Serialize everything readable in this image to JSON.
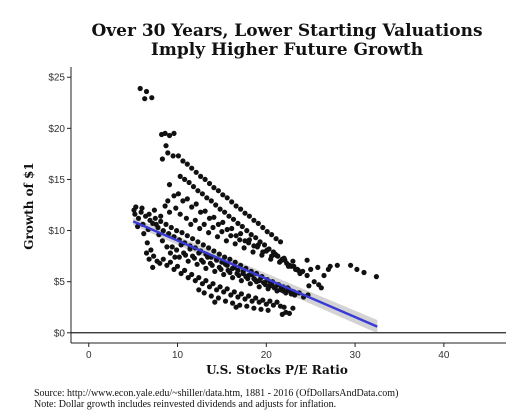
{
  "footnotes": {
    "source": "Source:  http://www.econ.yale.edu/~shiller/data.htm, 1881 - 2016 (OfDollarsAndData.com)",
    "note": "Note:  Dollar growth includes reinvested dividends and adjusts for inflation."
  },
  "chart_data": {
    "type": "scatter",
    "title": [
      "Over 30 Years, Lower Starting Valuations",
      "Imply Higher Future Growth"
    ],
    "xlabel": "U.S. Stocks P/E Ratio",
    "ylabel": "Growth of $1",
    "xlim": [
      -2,
      47
    ],
    "ylim": [
      -1,
      26
    ],
    "xticks": [
      0,
      10,
      20,
      30,
      40
    ],
    "yticks": [
      0,
      5,
      10,
      15,
      20,
      25
    ],
    "ytick_labels": [
      "$0",
      "$5",
      "$10",
      "$15",
      "$20",
      "$25"
    ],
    "grid": false,
    "legend": "none",
    "hline": 0,
    "colors": {
      "points": "#111111",
      "trend": "#3a3ad6",
      "band": "#c8c8c8",
      "axis": "#222222"
    },
    "trend": {
      "x": [
        5,
        32.5
      ],
      "y": [
        10.9,
        0.6
      ],
      "band_halfwidth": [
        0.38,
        0.65
      ]
    },
    "points": [
      [
        5.8,
        23.9
      ],
      [
        6.5,
        23.6
      ],
      [
        7.1,
        23.0
      ],
      [
        6.3,
        22.9
      ],
      [
        8.2,
        19.4
      ],
      [
        8.6,
        19.5
      ],
      [
        9.1,
        19.3
      ],
      [
        9.6,
        19.5
      ],
      [
        8.7,
        18.3
      ],
      [
        8.9,
        17.6
      ],
      [
        9.5,
        17.3
      ],
      [
        8.3,
        17.0
      ],
      [
        10.1,
        17.3
      ],
      [
        10.6,
        16.8
      ],
      [
        11.1,
        16.5
      ],
      [
        11.6,
        16.1
      ],
      [
        12.1,
        15.7
      ],
      [
        12.6,
        15.3
      ],
      [
        13.1,
        15.0
      ],
      [
        13.6,
        14.6
      ],
      [
        14.1,
        14.2
      ],
      [
        14.6,
        13.9
      ],
      [
        15.1,
        13.5
      ],
      [
        15.6,
        13.2
      ],
      [
        16.1,
        12.8
      ],
      [
        16.6,
        12.4
      ],
      [
        17.1,
        12.1
      ],
      [
        17.6,
        11.7
      ],
      [
        18.1,
        11.4
      ],
      [
        18.6,
        11.0
      ],
      [
        19.1,
        10.7
      ],
      [
        19.6,
        10.3
      ],
      [
        20.1,
        9.9
      ],
      [
        20.6,
        9.6
      ],
      [
        21.1,
        9.2
      ],
      [
        21.6,
        8.9
      ],
      [
        10.3,
        15.3
      ],
      [
        10.8,
        15.0
      ],
      [
        11.3,
        14.7
      ],
      [
        11.8,
        14.3
      ],
      [
        12.3,
        13.9
      ],
      [
        12.8,
        13.6
      ],
      [
        13.3,
        13.2
      ],
      [
        13.8,
        12.9
      ],
      [
        14.3,
        12.5
      ],
      [
        14.8,
        12.1
      ],
      [
        15.3,
        11.8
      ],
      [
        15.8,
        11.4
      ],
      [
        16.3,
        11.1
      ],
      [
        16.8,
        10.7
      ],
      [
        17.3,
        10.4
      ],
      [
        17.8,
        10.0
      ],
      [
        18.3,
        9.6
      ],
      [
        18.8,
        9.3
      ],
      [
        19.3,
        8.9
      ],
      [
        19.8,
        8.6
      ],
      [
        20.3,
        8.2
      ],
      [
        20.8,
        7.9
      ],
      [
        21.3,
        7.5
      ],
      [
        21.8,
        7.2
      ],
      [
        22.3,
        6.8
      ],
      [
        22.8,
        6.5
      ],
      [
        23.3,
        6.2
      ],
      [
        23.8,
        5.8
      ],
      [
        9.1,
        14.5
      ],
      [
        9.6,
        13.4
      ],
      [
        10.1,
        13.6
      ],
      [
        10.6,
        12.9
      ],
      [
        11.1,
        13.1
      ],
      [
        11.6,
        12.3
      ],
      [
        12.1,
        12.6
      ],
      [
        12.6,
        11.8
      ],
      [
        13.1,
        11.9
      ],
      [
        13.6,
        11.2
      ],
      [
        14.1,
        11.3
      ],
      [
        14.6,
        10.6
      ],
      [
        15.1,
        10.8
      ],
      [
        15.6,
        10.1
      ],
      [
        16.1,
        10.2
      ],
      [
        16.6,
        9.5
      ],
      [
        17.1,
        9.7
      ],
      [
        17.6,
        9.0
      ],
      [
        18.1,
        9.1
      ],
      [
        18.6,
        8.5
      ],
      [
        19.1,
        8.6
      ],
      [
        19.6,
        7.9
      ],
      [
        20.1,
        8.1
      ],
      [
        20.6,
        7.5
      ],
      [
        21.1,
        7.6
      ],
      [
        21.6,
        7.0
      ],
      [
        22.1,
        7.1
      ],
      [
        22.6,
        6.6
      ],
      [
        23.1,
        6.5
      ],
      [
        23.6,
        6.1
      ],
      [
        24.1,
        6.0
      ],
      [
        24.6,
        5.6
      ],
      [
        5.2,
        11.6
      ],
      [
        5.6,
        11.2
      ],
      [
        5.9,
        11.8
      ],
      [
        6.1,
        10.6
      ],
      [
        6.4,
        11.4
      ],
      [
        6.7,
        10.1
      ],
      [
        6.9,
        11.0
      ],
      [
        7.2,
        10.7
      ],
      [
        7.5,
        11.2
      ],
      [
        7.8,
        10.3
      ],
      [
        8.1,
        10.9
      ],
      [
        8.4,
        10.0
      ],
      [
        8.7,
        10.6
      ],
      [
        9.0,
        9.7
      ],
      [
        9.3,
        10.3
      ],
      [
        9.6,
        9.4
      ],
      [
        9.9,
        10.0
      ],
      [
        10.2,
        9.1
      ],
      [
        10.5,
        9.8
      ],
      [
        10.8,
        8.8
      ],
      [
        11.1,
        9.5
      ],
      [
        11.4,
        8.5
      ],
      [
        11.7,
        9.2
      ],
      [
        12.0,
        8.3
      ],
      [
        12.3,
        8.9
      ],
      [
        12.6,
        8.0
      ],
      [
        12.9,
        8.6
      ],
      [
        13.2,
        7.7
      ],
      [
        13.5,
        8.3
      ],
      [
        13.8,
        7.4
      ],
      [
        14.1,
        8.0
      ],
      [
        14.4,
        7.2
      ],
      [
        14.7,
        7.7
      ],
      [
        15.0,
        6.9
      ],
      [
        15.3,
        7.4
      ],
      [
        15.6,
        6.6
      ],
      [
        15.9,
        7.2
      ],
      [
        16.2,
        6.3
      ],
      [
        16.5,
        6.9
      ],
      [
        16.8,
        6.1
      ],
      [
        17.1,
        6.6
      ],
      [
        17.4,
        5.8
      ],
      [
        17.7,
        6.3
      ],
      [
        18.0,
        5.6
      ],
      [
        18.3,
        6.0
      ],
      [
        18.6,
        5.3
      ],
      [
        18.9,
        5.8
      ],
      [
        19.2,
        5.1
      ],
      [
        19.5,
        5.5
      ],
      [
        19.8,
        4.9
      ],
      [
        20.1,
        5.2
      ],
      [
        20.4,
        4.6
      ],
      [
        20.7,
        5.0
      ],
      [
        21.0,
        4.4
      ],
      [
        21.3,
        4.7
      ],
      [
        21.6,
        4.2
      ],
      [
        21.9,
        4.5
      ],
      [
        22.2,
        4.0
      ],
      [
        22.5,
        4.3
      ],
      [
        22.8,
        3.8
      ],
      [
        23.1,
        4.0
      ],
      [
        5.3,
        12.3
      ],
      [
        5.1,
        12.0
      ],
      [
        6.0,
        12.2
      ],
      [
        6.8,
        11.6
      ],
      [
        7.4,
        12.0
      ],
      [
        5.5,
        10.4
      ],
      [
        6.2,
        9.7
      ],
      [
        6.6,
        8.8
      ],
      [
        7.0,
        8.1
      ],
      [
        7.3,
        7.5
      ],
      [
        7.7,
        7.0
      ],
      [
        8.0,
        6.8
      ],
      [
        7.2,
        6.4
      ],
      [
        6.8,
        7.2
      ],
      [
        6.5,
        7.8
      ],
      [
        8.4,
        7.2
      ],
      [
        8.8,
        6.6
      ],
      [
        9.2,
        6.9
      ],
      [
        9.6,
        6.2
      ],
      [
        10.0,
        6.5
      ],
      [
        10.4,
        5.8
      ],
      [
        10.8,
        6.1
      ],
      [
        11.2,
        5.4
      ],
      [
        11.6,
        5.7
      ],
      [
        12.0,
        5.1
      ],
      [
        12.4,
        5.4
      ],
      [
        12.8,
        4.8
      ],
      [
        13.2,
        5.1
      ],
      [
        13.6,
        4.5
      ],
      [
        14.0,
        4.8
      ],
      [
        14.4,
        4.2
      ],
      [
        14.8,
        4.5
      ],
      [
        15.2,
        4.0
      ],
      [
        15.6,
        4.3
      ],
      [
        16.0,
        3.7
      ],
      [
        16.4,
        4.0
      ],
      [
        16.8,
        3.5
      ],
      [
        17.2,
        3.8
      ],
      [
        17.6,
        3.3
      ],
      [
        18.0,
        3.6
      ],
      [
        18.4,
        3.1
      ],
      [
        18.8,
        3.4
      ],
      [
        19.2,
        3.0
      ],
      [
        19.6,
        3.2
      ],
      [
        20.0,
        2.8
      ],
      [
        20.4,
        3.1
      ],
      [
        20.8,
        2.7
      ],
      [
        21.2,
        3.0
      ],
      [
        21.6,
        2.6
      ],
      [
        22.0,
        2.5
      ],
      [
        22.2,
        2.0
      ],
      [
        22.6,
        1.9
      ],
      [
        23.0,
        2.4
      ],
      [
        21.8,
        1.8
      ],
      [
        10.2,
        7.4
      ],
      [
        10.7,
        7.8
      ],
      [
        11.2,
        7.0
      ],
      [
        11.7,
        7.5
      ],
      [
        12.2,
        6.7
      ],
      [
        12.7,
        7.1
      ],
      [
        13.2,
        6.3
      ],
      [
        13.7,
        6.8
      ],
      [
        14.2,
        6.0
      ],
      [
        14.7,
        6.4
      ],
      [
        15.2,
        5.7
      ],
      [
        15.7,
        6.1
      ],
      [
        16.2,
        5.4
      ],
      [
        16.7,
        5.8
      ],
      [
        17.2,
        5.1
      ],
      [
        17.7,
        5.5
      ],
      [
        18.2,
        4.8
      ],
      [
        18.7,
        5.2
      ],
      [
        19.2,
        4.5
      ],
      [
        19.7,
        4.9
      ],
      [
        20.2,
        4.3
      ],
      [
        20.7,
        4.6
      ],
      [
        21.2,
        4.1
      ],
      [
        21.7,
        4.4
      ],
      [
        22.2,
        3.9
      ],
      [
        22.7,
        4.1
      ],
      [
        23.2,
        3.7
      ],
      [
        23.7,
        3.9
      ],
      [
        24.2,
        3.5
      ],
      [
        24.7,
        3.7
      ],
      [
        9.4,
        8.4
      ],
      [
        9.9,
        8.1
      ],
      [
        10.4,
        8.6
      ],
      [
        10.9,
        7.6
      ],
      [
        11.4,
        8.2
      ],
      [
        11.9,
        7.3
      ],
      [
        12.4,
        7.8
      ],
      [
        12.9,
        6.9
      ],
      [
        13.4,
        7.4
      ],
      [
        13.9,
        6.6
      ],
      [
        14.4,
        7.1
      ],
      [
        14.9,
        6.2
      ],
      [
        15.4,
        6.7
      ],
      [
        15.9,
        5.9
      ],
      [
        16.4,
        6.4
      ],
      [
        16.9,
        5.6
      ],
      [
        17.4,
        6.0
      ],
      [
        17.9,
        5.3
      ],
      [
        18.4,
        5.7
      ],
      [
        18.9,
        5.0
      ],
      [
        19.4,
        5.4
      ],
      [
        19.9,
        4.7
      ],
      [
        20.4,
        5.0
      ],
      [
        20.9,
        4.4
      ],
      [
        21.4,
        4.7
      ],
      [
        21.9,
        4.1
      ],
      [
        22.4,
        4.4
      ],
      [
        22.9,
        3.8
      ],
      [
        11.0,
        11.2
      ],
      [
        11.5,
        10.6
      ],
      [
        12.0,
        11.0
      ],
      [
        12.5,
        10.2
      ],
      [
        13.0,
        10.6
      ],
      [
        13.5,
        9.8
      ],
      [
        14.0,
        10.3
      ],
      [
        14.5,
        9.4
      ],
      [
        15.0,
        9.9
      ],
      [
        15.5,
        9.0
      ],
      [
        16.0,
        9.5
      ],
      [
        16.5,
        8.7
      ],
      [
        17.0,
        9.1
      ],
      [
        17.5,
        8.3
      ],
      [
        18.0,
        8.8
      ],
      [
        18.5,
        7.9
      ],
      [
        19.0,
        8.4
      ],
      [
        19.5,
        7.6
      ],
      [
        20.0,
        8.0
      ],
      [
        20.5,
        7.2
      ],
      [
        21.0,
        7.7
      ],
      [
        21.5,
        6.9
      ],
      [
        22.0,
        7.3
      ],
      [
        22.5,
        6.5
      ],
      [
        23.0,
        7.0
      ],
      [
        23.5,
        6.2
      ],
      [
        8.6,
        12.4
      ],
      [
        9.1,
        11.8
      ],
      [
        8.9,
        12.9
      ],
      [
        9.8,
        12.2
      ],
      [
        10.3,
        11.6
      ],
      [
        8.1,
        11.4
      ],
      [
        7.6,
        10.6
      ],
      [
        7.9,
        9.6
      ],
      [
        8.3,
        9.0
      ],
      [
        8.8,
        8.4
      ],
      [
        9.2,
        7.8
      ],
      [
        9.7,
        7.4
      ],
      [
        12.4,
        4.2
      ],
      [
        13.0,
        3.9
      ],
      [
        13.8,
        3.6
      ],
      [
        14.6,
        3.4
      ],
      [
        15.4,
        3.1
      ],
      [
        16.2,
        2.9
      ],
      [
        17.0,
        2.7
      ],
      [
        17.8,
        2.6
      ],
      [
        18.6,
        2.4
      ],
      [
        19.4,
        2.3
      ],
      [
        20.2,
        2.2
      ],
      [
        14.2,
        3.0
      ],
      [
        16.6,
        2.5
      ],
      [
        24.8,
        4.6
      ],
      [
        25.4,
        5.0
      ],
      [
        25.9,
        4.7
      ],
      [
        26.5,
        5.6
      ],
      [
        27.2,
        6.5
      ],
      [
        28.0,
        6.6
      ],
      [
        29.5,
        6.6
      ],
      [
        30.2,
        6.2
      ],
      [
        31.0,
        5.9
      ],
      [
        32.4,
        5.5
      ],
      [
        25.0,
        6.2
      ],
      [
        25.8,
        6.4
      ],
      [
        24.6,
        7.1
      ],
      [
        26.2,
        4.4
      ],
      [
        27.0,
        6.2
      ]
    ]
  }
}
